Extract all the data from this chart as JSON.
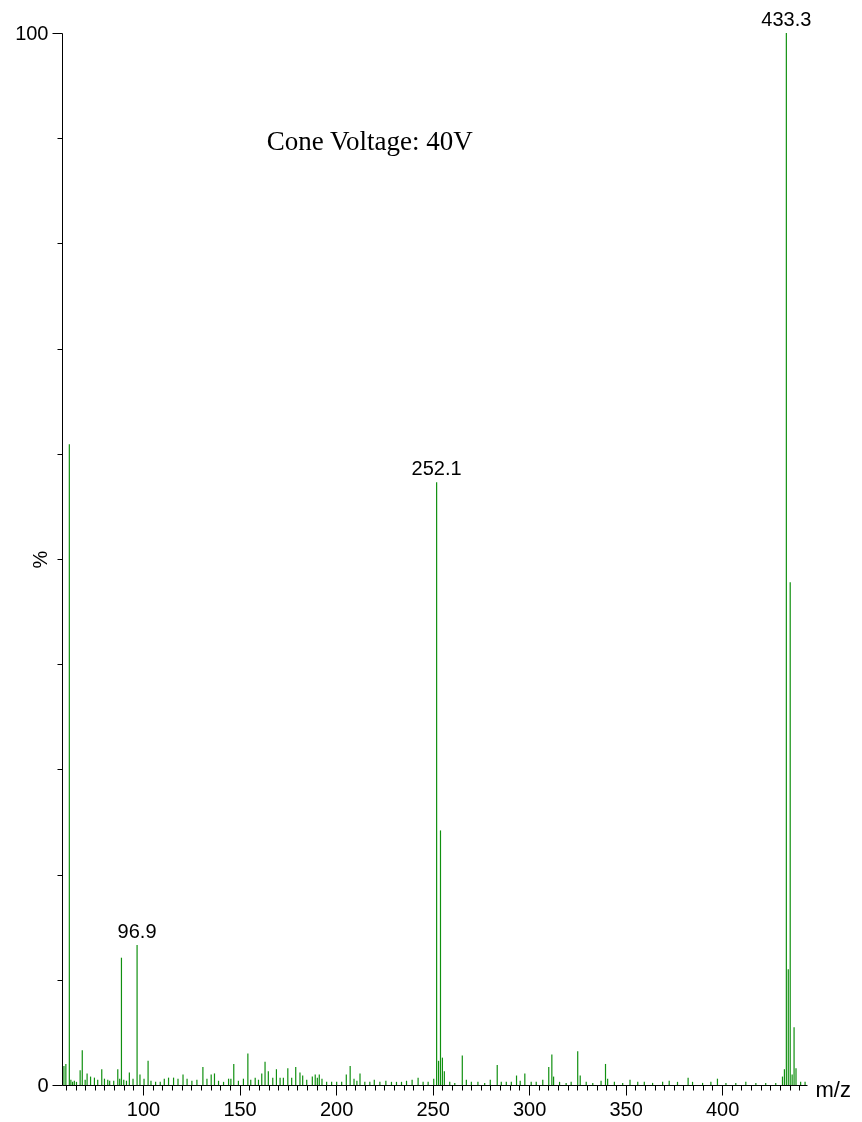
{
  "chart_data": {
    "type": "bar",
    "xlabel": "m/z",
    "ylabel": "%",
    "color": "#109010",
    "x": [
      59.0,
      60.0,
      61.8,
      62.6,
      63.5,
      64.4,
      65.5,
      67.4,
      68.5,
      70.0,
      71.0,
      72.8,
      74.8,
      76.5,
      78.6,
      80.0,
      81.7,
      82.7,
      84.8,
      86.9,
      87.9,
      88.8,
      90.0,
      91.4,
      92.9,
      94.8,
      96.9,
      98.4,
      100.5,
      102.6,
      104.1,
      106.5,
      108.9,
      111.0,
      113.2,
      115.8,
      118.1,
      120.7,
      122.8,
      125.3,
      127.9,
      131.0,
      133.1,
      135.3,
      137.0,
      139.1,
      141.7,
      144.3,
      145.5,
      147.0,
      149.4,
      152.0,
      154.3,
      155.8,
      158.1,
      159.8,
      161.5,
      163.2,
      164.9,
      167.2,
      169.1,
      171.0,
      172.7,
      175.0,
      177.0,
      179.1,
      181.3,
      182.7,
      184.8,
      187.7,
      189.2,
      190.3,
      191.3,
      192.7,
      195.1,
      197.7,
      200.3,
      202.9,
      205.3,
      207.3,
      209.3,
      210.8,
      212.4,
      214.9,
      217.5,
      219.8,
      222.7,
      225.8,
      228.7,
      231.3,
      233.9,
      236.5,
      239.4,
      242.5,
      245.1,
      247.7,
      250.6,
      252.1,
      253.1,
      254.1,
      255.1,
      256.1,
      258.9,
      261.5,
      265.4,
      267.5,
      270.1,
      273.5,
      277.0,
      279.9,
      283.5,
      285.6,
      288.2,
      290.8,
      293.5,
      295.4,
      297.8,
      301.1,
      303.7,
      307.1,
      310.2,
      311.8,
      312.7,
      315.8,
      319.2,
      321.8,
      325.2,
      326.5,
      329.6,
      333.0,
      337.3,
      339.6,
      340.7,
      344.2,
      348.5,
      352.3,
      356.3,
      359.7,
      364.0,
      369.2,
      372.6,
      376.9,
      382.4,
      384.7,
      389.9,
      394.2,
      397.6,
      402.0,
      407.1,
      412.3,
      417.5,
      422.6,
      427.8,
      431.3,
      432.3,
      433.3,
      434.3,
      435.3,
      436.3,
      437.3,
      438.3,
      440.7,
      443.0
    ],
    "values": [
      1.8,
      2.0,
      60.9,
      0.5,
      0.3,
      0.4,
      0.3,
      1.4,
      3.3,
      0.5,
      1.1,
      0.8,
      0.7,
      0.5,
      1.5,
      0.6,
      0.5,
      0.4,
      0.4,
      1.5,
      0.6,
      12.1,
      0.5,
      0.4,
      1.2,
      0.6,
      13.3,
      1.0,
      0.6,
      2.3,
      0.4,
      0.3,
      0.3,
      0.6,
      0.7,
      0.7,
      0.6,
      1.0,
      0.6,
      0.4,
      0.5,
      1.7,
      0.6,
      1.0,
      1.1,
      0.4,
      0.3,
      0.6,
      0.6,
      2.0,
      0.4,
      0.6,
      3.0,
      0.5,
      0.7,
      0.5,
      1.1,
      2.2,
      1.3,
      0.7,
      1.5,
      0.7,
      0.7,
      1.6,
      0.7,
      1.7,
      1.2,
      0.9,
      0.5,
      0.8,
      1.0,
      0.7,
      1.0,
      0.6,
      0.3,
      0.3,
      0.3,
      0.3,
      1.0,
      1.8,
      0.6,
      0.4,
      1.1,
      0.3,
      0.3,
      0.5,
      0.3,
      0.4,
      0.3,
      0.3,
      0.3,
      0.4,
      0.5,
      0.7,
      0.3,
      0.3,
      0.6,
      57.3,
      2.3,
      24.2,
      2.6,
      1.3,
      0.3,
      0.2,
      2.8,
      0.5,
      0.3,
      0.3,
      0.2,
      0.5,
      1.9,
      0.3,
      0.3,
      0.3,
      0.9,
      0.4,
      1.1,
      0.3,
      0.3,
      0.5,
      1.7,
      2.9,
      0.8,
      0.3,
      0.2,
      0.3,
      3.2,
      0.9,
      0.3,
      0.2,
      0.4,
      2.0,
      0.6,
      0.3,
      0.2,
      0.5,
      0.3,
      0.3,
      0.2,
      0.3,
      0.4,
      0.3,
      0.7,
      0.3,
      0.2,
      0.3,
      0.6,
      0.2,
      0.2,
      0.3,
      0.2,
      0.2,
      0.2,
      0.8,
      1.5,
      100,
      11.0,
      47.8,
      1.0,
      5.5,
      1.6,
      0.3,
      0.3
    ],
    "xlim": [
      58,
      444
    ],
    "xticks": [
      {
        "value": 60,
        "label": null
      },
      {
        "value": 65,
        "label": null
      },
      {
        "value": 70,
        "label": null
      },
      {
        "value": 75,
        "label": null
      },
      {
        "value": 80,
        "label": null
      },
      {
        "value": 85,
        "label": null
      },
      {
        "value": 90,
        "label": null
      },
      {
        "value": 95,
        "label": null
      },
      100,
      {
        "value": 105,
        "label": null
      },
      {
        "value": 110,
        "label": null
      },
      {
        "value": 115,
        "label": null
      },
      {
        "value": 120,
        "label": null
      },
      {
        "value": 125,
        "label": null
      },
      {
        "value": 130,
        "label": null
      },
      {
        "value": 135,
        "label": null
      },
      {
        "value": 140,
        "label": null
      },
      {
        "value": 145,
        "label": null
      },
      150,
      {
        "value": 155,
        "label": null
      },
      {
        "value": 160,
        "label": null
      },
      {
        "value": 165,
        "label": null
      },
      {
        "value": 170,
        "label": null
      },
      {
        "value": 175,
        "label": null
      },
      {
        "value": 180,
        "label": null
      },
      {
        "value": 185,
        "label": null
      },
      {
        "value": 190,
        "label": null
      },
      {
        "value": 195,
        "label": null
      },
      200,
      {
        "value": 205,
        "label": null
      },
      {
        "value": 210,
        "label": null
      },
      {
        "value": 215,
        "label": null
      },
      {
        "value": 220,
        "label": null
      },
      {
        "value": 225,
        "label": null
      },
      {
        "value": 230,
        "label": null
      },
      {
        "value": 235,
        "label": null
      },
      {
        "value": 240,
        "label": null
      },
      {
        "value": 245,
        "label": null
      },
      250,
      {
        "value": 255,
        "label": null
      },
      {
        "value": 260,
        "label": null
      },
      {
        "value": 265,
        "label": null
      },
      {
        "value": 270,
        "label": null
      },
      {
        "value": 275,
        "label": null
      },
      {
        "value": 280,
        "label": null
      },
      {
        "value": 285,
        "label": null
      },
      {
        "value": 290,
        "label": null
      },
      {
        "value": 295,
        "label": null
      },
      300,
      {
        "value": 305,
        "label": null
      },
      {
        "value": 310,
        "label": null
      },
      {
        "value": 315,
        "label": null
      },
      {
        "value": 320,
        "label": null
      },
      {
        "value": 325,
        "label": null
      },
      {
        "value": 330,
        "label": null
      },
      {
        "value": 335,
        "label": null
      },
      {
        "value": 340,
        "label": null
      },
      {
        "value": 345,
        "label": null
      },
      350,
      {
        "value": 355,
        "label": null
      },
      {
        "value": 360,
        "label": null
      },
      {
        "value": 365,
        "label": null
      },
      {
        "value": 370,
        "label": null
      },
      {
        "value": 375,
        "label": null
      },
      {
        "value": 380,
        "label": null
      },
      {
        "value": 385,
        "label": null
      },
      {
        "value": 390,
        "label": null
      },
      {
        "value": 395,
        "label": null
      },
      400,
      {
        "value": 405,
        "label": null
      },
      {
        "value": 410,
        "label": null
      },
      {
        "value": 415,
        "label": null
      },
      {
        "value": 420,
        "label": null
      },
      {
        "value": 425,
        "label": null
      },
      {
        "value": 430,
        "label": null
      },
      {
        "value": 435,
        "label": null
      },
      {
        "value": 440,
        "label": null
      }
    ],
    "ylim": [
      0,
      100
    ],
    "yticks": [
      0,
      {
        "value": 10,
        "label": null
      },
      {
        "value": 20,
        "label": null
      },
      {
        "value": 30,
        "label": null
      },
      {
        "value": 40,
        "label": null
      },
      {
        "value": 50,
        "label": null
      },
      {
        "value": 60,
        "label": null
      },
      {
        "value": 70,
        "label": null
      },
      {
        "value": 80,
        "label": null
      },
      {
        "value": 90,
        "label": null
      },
      100
    ],
    "annotations": [
      {
        "text": "433.3",
        "x": 433.3,
        "y": 100
      },
      {
        "text": "252.1",
        "x": 252.1,
        "y": 57.3
      },
      {
        "text": "96.9",
        "x": 96.9,
        "y": 13.3
      },
      "Cone Voltage: 40V"
    ]
  }
}
